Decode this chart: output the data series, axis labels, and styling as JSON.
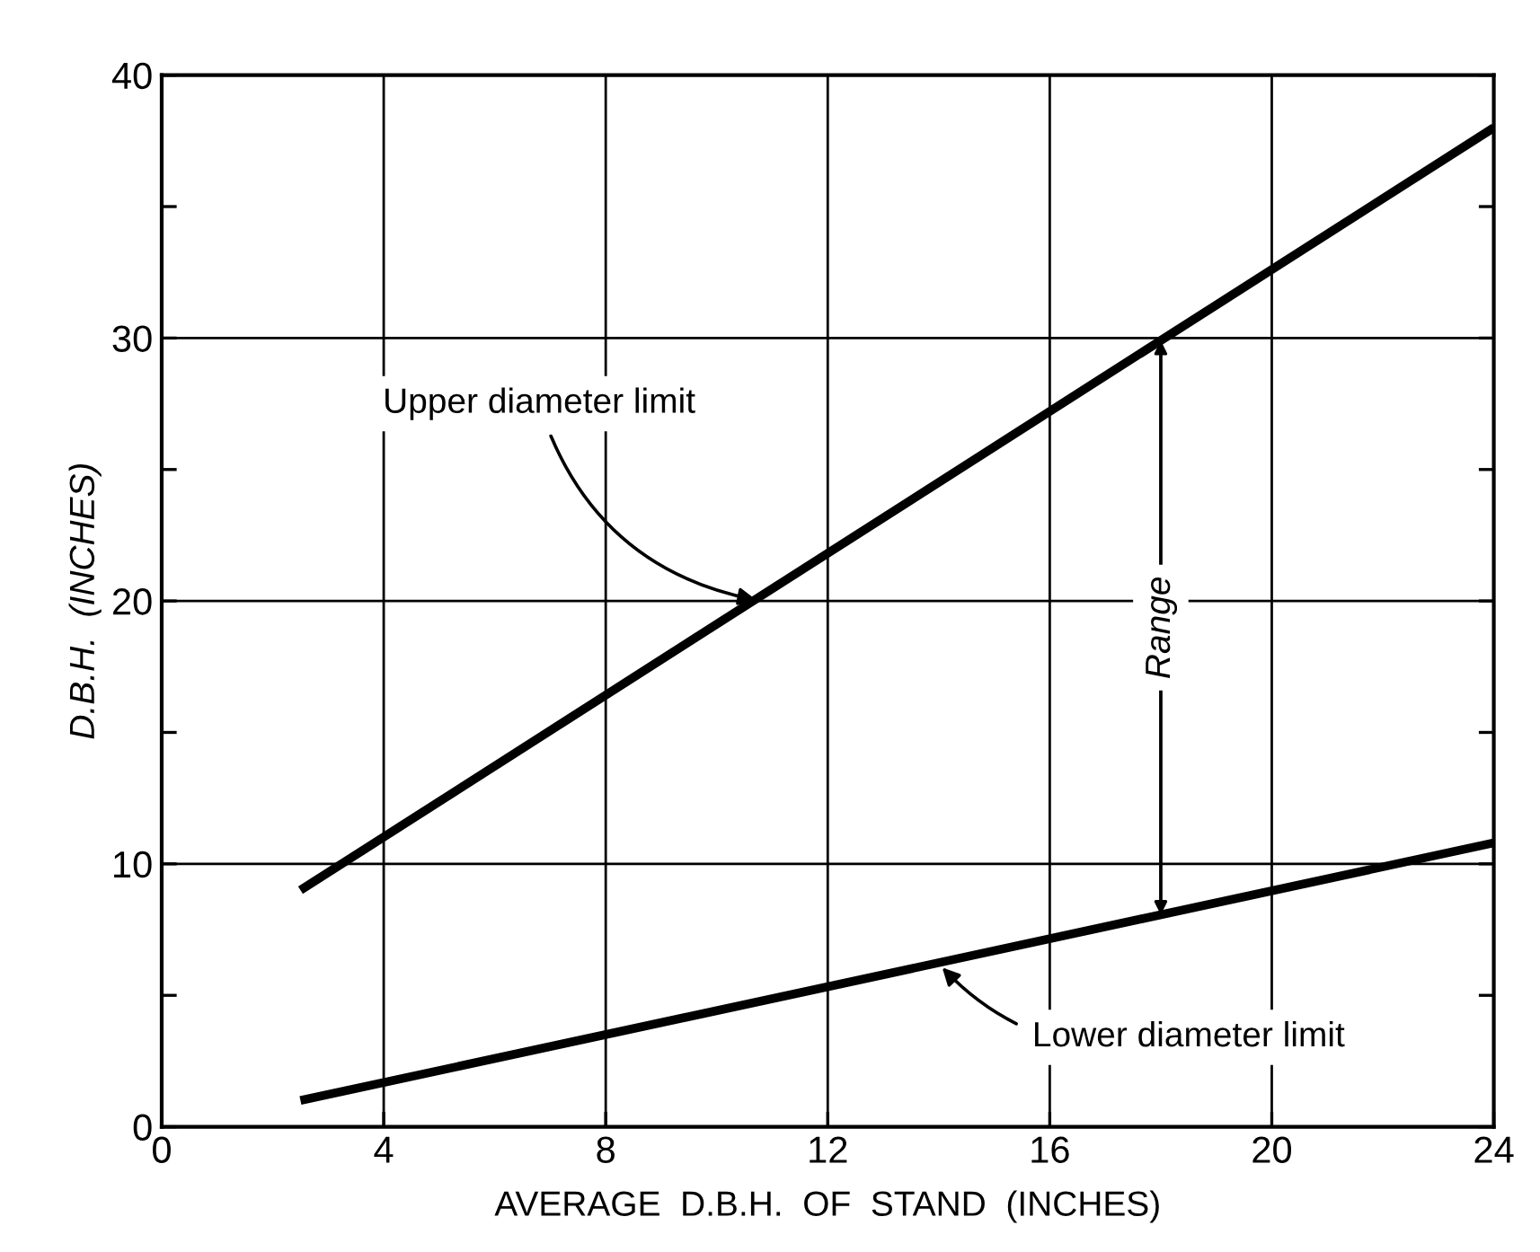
{
  "chart_data": {
    "type": "line",
    "xlabel": "AVERAGE  D.B.H.  OF  STAND  (INCHES)",
    "ylabel": "D.B.H.  (INCHES)",
    "series": [
      {
        "color": "#000000",
        "values": [
          9,
          38
        ]
      },
      {
        "color": "#000000",
        "values": [
          1,
          10.8
        ]
      }
    ],
    "x": [
      2.5,
      24
    ],
    "xlim": [
      0,
      24
    ],
    "ylim": [
      0,
      40
    ],
    "xticks": [
      0,
      4,
      8,
      12,
      16,
      20,
      24
    ],
    "yticks": [
      0,
      {
        "value": 5,
        "label": null
      },
      10,
      {
        "value": 15,
        "label": null
      },
      20,
      {
        "value": 25,
        "label": null
      },
      30,
      {
        "value": 35,
        "label": null
      },
      40
    ],
    "grid": true,
    "legend": false,
    "marker": "none",
    "line_style": "solid",
    "annotations": [
      {
        "text": "Upper diameter limit",
        "x": 10.8,
        "y": 20
      },
      {
        "text": "Lower diameter limit",
        "x": 14,
        "y": 6.2
      }
    ],
    "ref_lines": [
      {
        "axis": "x",
        "value": 18,
        "label": "Range"
      }
    ]
  }
}
